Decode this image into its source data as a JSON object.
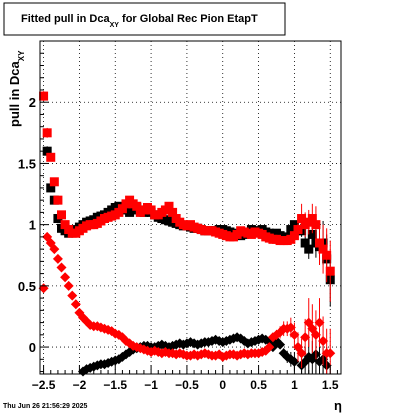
{
  "chart_data": {
    "type": "scatter",
    "title": "Fitted pull in Dca",
    "title_subscript": "XY",
    "title_suffix": " for Global Rec Pion EtapT",
    "ylabel": "pull in Dca",
    "ylabel_subscript": "XY",
    "xlabel": "η",
    "timestamp": "Thu Jun 26 21:56:29 2025",
    "xlim": [
      -2.55,
      1.65
    ],
    "ylim": [
      -0.22,
      2.5
    ],
    "grid": true,
    "x_ticks": [
      -2.5,
      -2,
      -1.5,
      -1,
      -0.5,
      0,
      0.5,
      1,
      1.5
    ],
    "x_tick_labels": [
      "−2.5",
      "−2",
      "−1.5",
      "−1",
      "−0.5",
      "0",
      "0.5",
      "1",
      "1.5"
    ],
    "y_ticks": [
      0,
      0.5,
      1,
      1.5,
      2
    ],
    "y_tick_labels": [
      "0",
      "0.5",
      "1",
      "1.5",
      "2"
    ],
    "colors": {
      "black": "#000000",
      "red": "#ff0000"
    },
    "series": [
      {
        "marker": "square",
        "color": "#000000",
        "x": [
          -2.45,
          -2.4,
          -2.35,
          -2.3,
          -2.25,
          -2.2,
          -2.15,
          -2.1,
          -2.05,
          -2.0,
          -1.95,
          -1.9,
          -1.85,
          -1.8,
          -1.75,
          -1.7,
          -1.65,
          -1.6,
          -1.55,
          -1.5,
          -1.45,
          -1.4,
          -1.35,
          -1.3,
          -1.25,
          -1.2,
          -1.15,
          -1.1,
          -1.05,
          -1.0,
          -0.95,
          -0.9,
          -0.85,
          -0.8,
          -0.75,
          -0.7,
          -0.65,
          -0.6,
          -0.55,
          -0.5,
          -0.45,
          -0.4,
          -0.35,
          -0.3,
          -0.25,
          -0.2,
          -0.15,
          -0.1,
          -0.05,
          0.0,
          0.05,
          0.1,
          0.15,
          0.2,
          0.25,
          0.3,
          0.35,
          0.4,
          0.45,
          0.5,
          0.55,
          0.6,
          0.65,
          0.7,
          0.75,
          0.8,
          0.85,
          0.9,
          0.95,
          1.0,
          1.05,
          1.1,
          1.15,
          1.2,
          1.25,
          1.3,
          1.35,
          1.4,
          1.45,
          1.5
        ],
        "y": [
          1.6,
          1.3,
          1.2,
          1.05,
          0.97,
          0.95,
          0.93,
          0.95,
          0.96,
          0.98,
          1.0,
          1.02,
          1.03,
          1.04,
          1.06,
          1.07,
          1.08,
          1.1,
          1.12,
          1.14,
          1.15,
          1.13,
          1.12,
          1.1,
          1.12,
          1.14,
          1.12,
          1.1,
          1.12,
          1.1,
          1.08,
          1.06,
          1.05,
          1.04,
          1.03,
          1.02,
          1.01,
          1.0,
          0.99,
          0.99,
          0.98,
          0.97,
          0.97,
          0.96,
          0.95,
          0.95,
          0.95,
          0.95,
          0.96,
          0.96,
          0.95,
          0.94,
          0.93,
          0.92,
          0.91,
          0.92,
          0.94,
          0.96,
          0.95,
          0.95,
          0.96,
          0.94,
          0.93,
          0.92,
          0.93,
          0.91,
          0.89,
          0.9,
          0.96,
          1.0,
          0.95,
          0.95,
          0.85,
          0.8,
          0.92,
          0.85,
          0.82,
          0.85,
          0.72,
          0.55
        ],
        "yerr": [
          0.04,
          0.03,
          0.03,
          0.02,
          0.02,
          0.02,
          0.02,
          0.02,
          0.02,
          0.02,
          0.02,
          0.02,
          0.02,
          0.02,
          0.02,
          0.02,
          0.02,
          0.02,
          0.02,
          0.02,
          0.02,
          0.02,
          0.02,
          0.02,
          0.02,
          0.02,
          0.02,
          0.02,
          0.02,
          0.02,
          0.02,
          0.02,
          0.02,
          0.02,
          0.02,
          0.02,
          0.02,
          0.02,
          0.02,
          0.02,
          0.02,
          0.02,
          0.02,
          0.02,
          0.02,
          0.02,
          0.02,
          0.02,
          0.02,
          0.02,
          0.02,
          0.02,
          0.02,
          0.02,
          0.02,
          0.02,
          0.02,
          0.02,
          0.02,
          0.02,
          0.02,
          0.02,
          0.02,
          0.02,
          0.02,
          0.02,
          0.02,
          0.02,
          0.03,
          0.03,
          0.04,
          0.05,
          0.06,
          0.08,
          0.1,
          0.12,
          0.15,
          0.18,
          0.2,
          0.22
        ]
      },
      {
        "marker": "square",
        "color": "#ff0000",
        "x": [
          -2.5,
          -2.45,
          -2.4,
          -2.35,
          -2.3,
          -2.25,
          -2.2,
          -2.15,
          -2.1,
          -2.05,
          -2.0,
          -1.95,
          -1.9,
          -1.85,
          -1.8,
          -1.75,
          -1.7,
          -1.65,
          -1.6,
          -1.55,
          -1.5,
          -1.45,
          -1.4,
          -1.35,
          -1.3,
          -1.25,
          -1.2,
          -1.15,
          -1.1,
          -1.05,
          -1.0,
          -0.95,
          -0.9,
          -0.85,
          -0.8,
          -0.75,
          -0.7,
          -0.65,
          -0.6,
          -0.55,
          -0.5,
          -0.45,
          -0.4,
          -0.35,
          -0.3,
          -0.25,
          -0.2,
          -0.15,
          -0.1,
          -0.05,
          0.0,
          0.05,
          0.1,
          0.15,
          0.2,
          0.25,
          0.3,
          0.35,
          0.4,
          0.45,
          0.5,
          0.55,
          0.6,
          0.65,
          0.7,
          0.75,
          0.8,
          0.85,
          0.9,
          0.95,
          1.0,
          1.05,
          1.1,
          1.15,
          1.2,
          1.25,
          1.3,
          1.35,
          1.4,
          1.45,
          1.5
        ],
        "y": [
          2.05,
          1.75,
          1.55,
          1.35,
          1.2,
          1.08,
          1.0,
          0.96,
          0.93,
          0.93,
          0.95,
          0.97,
          0.99,
          1.0,
          1.0,
          1.01,
          1.03,
          1.05,
          1.06,
          1.07,
          1.08,
          1.1,
          1.13,
          1.17,
          1.2,
          1.17,
          1.15,
          1.1,
          1.12,
          1.14,
          1.12,
          1.08,
          1.08,
          1.1,
          1.12,
          1.15,
          1.1,
          1.05,
          1.02,
          1.0,
          0.99,
          1.0,
          0.98,
          0.97,
          0.96,
          0.95,
          0.95,
          0.95,
          0.94,
          0.93,
          0.92,
          0.91,
          0.9,
          0.9,
          0.92,
          0.95,
          0.94,
          0.93,
          0.92,
          0.94,
          0.93,
          0.92,
          0.9,
          0.89,
          0.88,
          0.88,
          0.87,
          0.87,
          0.87,
          0.88,
          0.91,
          0.96,
          1.05,
          1.0,
          1.02,
          1.05,
          1.0,
          0.85,
          0.8,
          0.75,
          0.62
        ],
        "yerr": [
          0.04,
          0.04,
          0.03,
          0.03,
          0.02,
          0.02,
          0.02,
          0.02,
          0.02,
          0.02,
          0.02,
          0.02,
          0.02,
          0.02,
          0.02,
          0.02,
          0.02,
          0.02,
          0.02,
          0.02,
          0.02,
          0.02,
          0.02,
          0.02,
          0.02,
          0.02,
          0.02,
          0.02,
          0.02,
          0.02,
          0.02,
          0.02,
          0.02,
          0.02,
          0.02,
          0.02,
          0.02,
          0.02,
          0.02,
          0.02,
          0.02,
          0.02,
          0.02,
          0.02,
          0.02,
          0.02,
          0.02,
          0.02,
          0.02,
          0.02,
          0.02,
          0.02,
          0.02,
          0.02,
          0.02,
          0.02,
          0.02,
          0.02,
          0.02,
          0.02,
          0.02,
          0.02,
          0.02,
          0.02,
          0.02,
          0.02,
          0.02,
          0.02,
          0.02,
          0.02,
          0.03,
          0.05,
          0.12,
          0.1,
          0.1,
          0.12,
          0.15,
          0.18,
          0.2,
          0.22,
          0.25
        ]
      },
      {
        "marker": "diamond",
        "color": "#000000",
        "x": [
          -1.95,
          -1.9,
          -1.85,
          -1.8,
          -1.75,
          -1.7,
          -1.65,
          -1.6,
          -1.55,
          -1.5,
          -1.45,
          -1.4,
          -1.35,
          -1.3,
          -1.25,
          -1.2,
          -1.15,
          -1.1,
          -1.05,
          -1.0,
          -0.95,
          -0.9,
          -0.85,
          -0.8,
          -0.75,
          -0.7,
          -0.65,
          -0.6,
          -0.55,
          -0.5,
          -0.45,
          -0.4,
          -0.35,
          -0.3,
          -0.25,
          -0.2,
          -0.15,
          -0.1,
          -0.05,
          0.0,
          0.05,
          0.1,
          0.15,
          0.2,
          0.25,
          0.3,
          0.35,
          0.4,
          0.45,
          0.5,
          0.55,
          0.6,
          0.65,
          0.7,
          0.75,
          0.8,
          0.85,
          0.9,
          0.95,
          1.0,
          1.05,
          1.1,
          1.15,
          1.2,
          1.25,
          1.3,
          1.35,
          1.4,
          1.45
        ],
        "y": [
          -0.2,
          -0.18,
          -0.17,
          -0.16,
          -0.15,
          -0.14,
          -0.14,
          -0.13,
          -0.12,
          -0.11,
          -0.1,
          -0.08,
          -0.06,
          -0.04,
          -0.02,
          -0.01,
          0.0,
          0.01,
          0.01,
          0.0,
          0.0,
          0.01,
          0.02,
          0.01,
          0.0,
          0.01,
          0.02,
          0.03,
          0.02,
          0.03,
          0.04,
          0.03,
          0.02,
          0.03,
          0.04,
          0.04,
          0.05,
          0.06,
          0.05,
          0.04,
          0.05,
          0.06,
          0.07,
          0.08,
          0.07,
          0.05,
          0.03,
          0.04,
          0.05,
          0.06,
          0.07,
          0.06,
          0.05,
          0.0,
          0.05,
          0.02,
          -0.05,
          -0.08,
          -0.1,
          -0.12,
          0.0,
          -0.15,
          -0.12,
          -0.08,
          -0.1,
          -0.06,
          -0.12,
          -0.1,
          -0.15
        ],
        "yerr": [
          0.02,
          0.02,
          0.02,
          0.02,
          0.02,
          0.02,
          0.02,
          0.02,
          0.02,
          0.02,
          0.02,
          0.02,
          0.02,
          0.02,
          0.02,
          0.02,
          0.02,
          0.02,
          0.02,
          0.02,
          0.02,
          0.02,
          0.02,
          0.02,
          0.02,
          0.02,
          0.02,
          0.02,
          0.02,
          0.02,
          0.02,
          0.02,
          0.02,
          0.02,
          0.02,
          0.02,
          0.02,
          0.02,
          0.02,
          0.02,
          0.02,
          0.02,
          0.02,
          0.02,
          0.02,
          0.02,
          0.02,
          0.02,
          0.02,
          0.02,
          0.02,
          0.02,
          0.02,
          0.02,
          0.02,
          0.03,
          0.04,
          0.05,
          0.06,
          0.08,
          0.1,
          0.12,
          0.12,
          0.15,
          0.15,
          0.15,
          0.15,
          0.15,
          0.15
        ]
      },
      {
        "marker": "diamond",
        "color": "#ff0000",
        "x": [
          -2.5,
          -2.45,
          -2.4,
          -2.35,
          -2.3,
          -2.25,
          -2.2,
          -2.15,
          -2.1,
          -2.05,
          -2.0,
          -1.95,
          -1.9,
          -1.85,
          -1.8,
          -1.75,
          -1.7,
          -1.65,
          -1.6,
          -1.55,
          -1.5,
          -1.45,
          -1.4,
          -1.35,
          -1.3,
          -1.25,
          -1.2,
          -1.15,
          -1.1,
          -1.05,
          -1.0,
          -0.95,
          -0.9,
          -0.85,
          -0.8,
          -0.75,
          -0.7,
          -0.65,
          -0.6,
          -0.55,
          -0.5,
          -0.45,
          -0.4,
          -0.35,
          -0.3,
          -0.25,
          -0.2,
          -0.15,
          -0.1,
          -0.05,
          0.0,
          0.05,
          0.1,
          0.15,
          0.2,
          0.25,
          0.3,
          0.35,
          0.4,
          0.45,
          0.5,
          0.55,
          0.6,
          0.65,
          0.7,
          0.75,
          0.8,
          0.85,
          0.9,
          0.95,
          1.0,
          1.05,
          1.1,
          1.15,
          1.2,
          1.25,
          1.3,
          1.35,
          1.4,
          1.45,
          1.5
        ],
        "y": [
          0.48,
          0.9,
          0.85,
          0.8,
          0.72,
          0.65,
          0.57,
          0.5,
          0.42,
          0.35,
          0.28,
          0.24,
          0.21,
          0.18,
          0.17,
          0.17,
          0.16,
          0.15,
          0.14,
          0.13,
          0.11,
          0.1,
          0.08,
          0.05,
          0.03,
          0.01,
          0.0,
          -0.01,
          -0.02,
          -0.03,
          -0.04,
          -0.03,
          -0.04,
          -0.05,
          -0.04,
          -0.05,
          -0.05,
          -0.06,
          -0.05,
          -0.06,
          -0.07,
          -0.07,
          -0.06,
          -0.07,
          -0.06,
          -0.05,
          -0.06,
          -0.07,
          -0.07,
          -0.06,
          -0.08,
          -0.07,
          -0.06,
          -0.06,
          -0.07,
          -0.06,
          -0.05,
          -0.06,
          -0.05,
          -0.05,
          -0.05,
          -0.04,
          -0.03,
          0.0,
          0.08,
          0.1,
          0.12,
          0.15,
          0.15,
          0.16,
          0.1,
          0.0,
          -0.05,
          0.08,
          0.2,
          0.15,
          0.1,
          0.2,
          0.05,
          -0.05,
          -0.05
        ],
        "yerr": [
          0.03,
          0.03,
          0.03,
          0.03,
          0.02,
          0.02,
          0.02,
          0.02,
          0.02,
          0.02,
          0.02,
          0.02,
          0.02,
          0.02,
          0.02,
          0.02,
          0.02,
          0.02,
          0.02,
          0.02,
          0.02,
          0.02,
          0.02,
          0.02,
          0.02,
          0.02,
          0.02,
          0.02,
          0.02,
          0.02,
          0.02,
          0.02,
          0.02,
          0.02,
          0.02,
          0.02,
          0.02,
          0.02,
          0.02,
          0.02,
          0.02,
          0.02,
          0.02,
          0.02,
          0.02,
          0.02,
          0.02,
          0.02,
          0.02,
          0.02,
          0.02,
          0.02,
          0.02,
          0.02,
          0.02,
          0.02,
          0.02,
          0.02,
          0.02,
          0.02,
          0.02,
          0.02,
          0.02,
          0.03,
          0.03,
          0.04,
          0.05,
          0.06,
          0.06,
          0.08,
          0.1,
          0.12,
          0.12,
          0.15,
          0.2,
          0.2,
          0.2,
          0.2,
          0.2,
          0.2,
          0.2
        ]
      }
    ]
  }
}
